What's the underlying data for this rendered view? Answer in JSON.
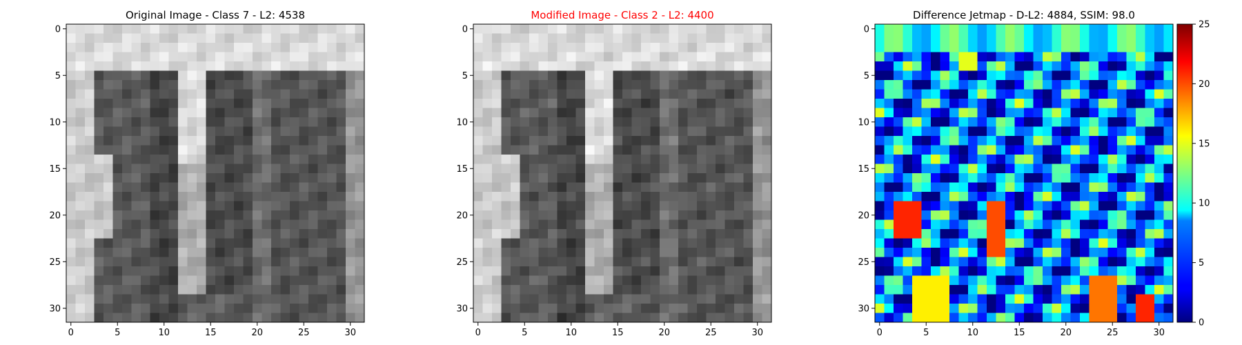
{
  "chart_data": [
    {
      "type": "heatmap",
      "title": "Original Image - Class 7 - L2: 4538",
      "title_color": "#000000",
      "colormap": "gray",
      "xlim": [
        -0.5,
        31.5
      ],
      "ylim": [
        31.5,
        -0.5
      ],
      "xticks": [
        0,
        5,
        10,
        15,
        20,
        25,
        30
      ],
      "yticks": [
        0,
        5,
        10,
        15,
        20,
        25,
        30
      ],
      "grid": false
    },
    {
      "type": "heatmap",
      "title": "Modified Image - Class 2 - L2: 4400",
      "title_color": "#ff0000",
      "colormap": "gray",
      "xlim": [
        -0.5,
        31.5
      ],
      "ylim": [
        31.5,
        -0.5
      ],
      "xticks": [
        0,
        5,
        10,
        15,
        20,
        25,
        30
      ],
      "yticks": [
        0,
        5,
        10,
        15,
        20,
        25,
        30
      ],
      "grid": false
    },
    {
      "type": "heatmap",
      "title": "Difference Jetmap - D-L2: 4884, SSIM: 98.0",
      "title_color": "#000000",
      "colormap": "jet",
      "xlim": [
        -0.5,
        31.5
      ],
      "ylim": [
        31.5,
        -0.5
      ],
      "xticks": [
        0,
        5,
        10,
        15,
        20,
        25,
        30
      ],
      "yticks": [
        0,
        5,
        10,
        15,
        20,
        25,
        30
      ],
      "colorbar": {
        "range": [
          0,
          25
        ],
        "ticks": [
          0,
          5,
          10,
          15,
          20,
          25
        ]
      },
      "grid": false
    }
  ]
}
